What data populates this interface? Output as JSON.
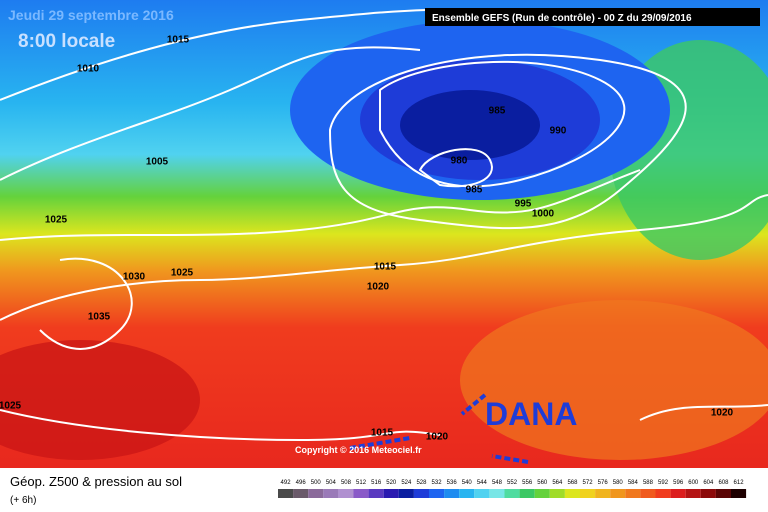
{
  "header": {
    "date": "Jeudi 29 septembre 2016",
    "time": "8:00 locale",
    "run": "Ensemble GEFS  (Run de contrôle)  -  00 Z du 29/09/2016"
  },
  "map": {
    "isobars": [
      "1015",
      "1010",
      "1005",
      "1025",
      "1030",
      "1025",
      "1035",
      "1025",
      "985",
      "990",
      "980",
      "985",
      "995",
      "1000",
      "1015",
      "1020",
      "1015",
      "1020",
      "1020"
    ],
    "annotation": "DANA",
    "copyright": "Copyright © 2016 Meteociel.fr"
  },
  "legend": {
    "title": "Géop. Z500 & pression au sol",
    "subtitle": "(+ 6h)",
    "items": [
      {
        "label": 492,
        "color": "#4a4a4a"
      },
      {
        "label": 496,
        "color": "#6a5a6a"
      },
      {
        "label": 500,
        "color": "#8a6a9a"
      },
      {
        "label": 504,
        "color": "#9a7ab8"
      },
      {
        "label": 508,
        "color": "#b090d0"
      },
      {
        "label": 512,
        "color": "#8a5ac8"
      },
      {
        "label": 516,
        "color": "#5a3ac0"
      },
      {
        "label": 520,
        "color": "#2a1ab0"
      },
      {
        "label": 524,
        "color": "#0a1ea0"
      },
      {
        "label": 528,
        "color": "#1e3cd8"
      },
      {
        "label": 532,
        "color": "#1e64f0"
      },
      {
        "label": 536,
        "color": "#1e8cf0"
      },
      {
        "label": 540,
        "color": "#28b4f0"
      },
      {
        "label": 544,
        "color": "#50d2f0"
      },
      {
        "label": 548,
        "color": "#78e6e6"
      },
      {
        "label": 552,
        "color": "#50dca0"
      },
      {
        "label": 556,
        "color": "#3cc864"
      },
      {
        "label": 560,
        "color": "#64d23c"
      },
      {
        "label": 564,
        "color": "#a0dc28"
      },
      {
        "label": 568,
        "color": "#dce61e"
      },
      {
        "label": 572,
        "color": "#f0d21e"
      },
      {
        "label": 576,
        "color": "#f0b41e"
      },
      {
        "label": 580,
        "color": "#f0961e"
      },
      {
        "label": 584,
        "color": "#f0781e"
      },
      {
        "label": 588,
        "color": "#f05a1e"
      },
      {
        "label": 592,
        "color": "#f03c1e"
      },
      {
        "label": 596,
        "color": "#dc1e1e"
      },
      {
        "label": 600,
        "color": "#b41414"
      },
      {
        "label": 604,
        "color": "#8c0a0a"
      },
      {
        "label": 608,
        "color": "#5a0505"
      },
      {
        "label": 612,
        "color": "#1e0000"
      }
    ]
  }
}
